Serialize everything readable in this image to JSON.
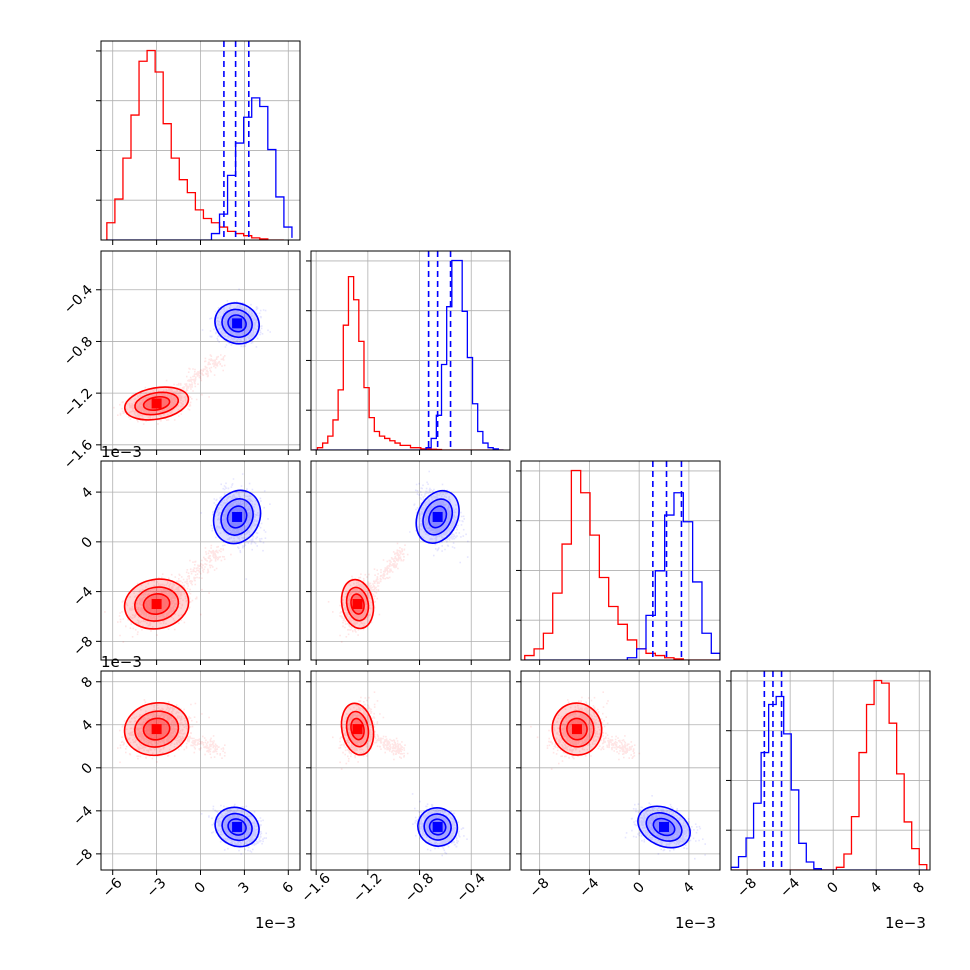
{
  "chart_data": {
    "type": "corner",
    "grid": true,
    "series": [
      {
        "color": "#ff0000",
        "fill": "rgba(255,0,0,0.35)",
        "scatter": "rgba(255,0,0,0.10)",
        "label_desc": "red samples"
      },
      {
        "color": "#0000ff",
        "fill": "rgba(40,40,255,0.35)",
        "scatter": "rgba(0,0,255,0.10)",
        "label_desc": "blue samples"
      }
    ],
    "parameters": [
      {
        "id": "p0",
        "range": [
          -6.8,
          6.8
        ],
        "ticks": [
          -6,
          -3,
          0,
          3,
          6
        ],
        "tick_labels": [
          "−6",
          "−3",
          "0",
          "3",
          "6"
        ],
        "multiplier": "1e−3"
      },
      {
        "id": "p1",
        "range": [
          -1.64,
          -0.1
        ],
        "ticks": [
          -1.6,
          -1.2,
          -0.8,
          -0.4
        ],
        "tick_labels": [
          "−1.6",
          "−1.2",
          "−0.8",
          "−0.4"
        ],
        "multiplier": "1e−3"
      },
      {
        "id": "p2",
        "range": [
          -9.5,
          6.5
        ],
        "ticks": [
          -8,
          -4,
          0,
          4
        ],
        "tick_labels": [
          "−8",
          "−4",
          "0",
          "4"
        ],
        "multiplier": "1e−3"
      },
      {
        "id": "p3",
        "range": [
          -9.5,
          9.0
        ],
        "ticks": [
          -8,
          -4,
          0,
          4,
          8
        ],
        "tick_labels": [
          "−8",
          "−4",
          "0",
          "4",
          "8"
        ],
        "multiplier": "1e−3"
      }
    ],
    "clusters": {
      "red": [
        {
          "mean": [
            -3.0,
            -1.28,
            -5.0,
            3.6
          ],
          "sd": [
            1.0,
            0.055,
            0.9,
            1.1
          ]
        }
      ],
      "red_tail_end": [
        0.5,
        -1.0,
        -1.5,
        2.0
      ],
      "blue": [
        {
          "mean": [
            2.5,
            -0.66,
            2.0,
            -5.5
          ],
          "sd": [
            0.7,
            0.07,
            1.0,
            0.8
          ]
        }
      ]
    },
    "hist1d": [
      {
        "bins": [
          -6.4,
          -5.85,
          -5.3,
          -4.75,
          -4.2,
          -3.65,
          -3.1,
          -2.55,
          -2.0,
          -1.45,
          -0.9,
          -0.35,
          0.2,
          0.75,
          1.3,
          1.85,
          2.4,
          2.95,
          3.5,
          4.05,
          4.6,
          5.15,
          5.7,
          6.25
        ],
        "red": [
          8,
          19,
          38,
          58,
          83,
          88,
          78,
          54,
          38,
          28,
          22,
          14,
          10,
          8,
          6,
          4,
          3,
          2,
          1,
          0.5,
          0,
          0
        ],
        "blue": [
          0,
          0,
          0,
          0,
          0,
          0,
          0,
          0,
          0,
          0,
          0,
          0,
          0,
          3,
          12,
          30,
          45,
          57,
          66,
          62,
          42,
          20,
          6,
          1
        ],
        "blue_quantiles": [
          1.6,
          2.4,
          3.3
        ]
      },
      {
        "bins": [
          -1.63,
          -1.59,
          -1.55,
          -1.51,
          -1.47,
          -1.43,
          -1.39,
          -1.35,
          -1.31,
          -1.27,
          -1.23,
          -1.19,
          -1.15,
          -1.11,
          -1.07,
          -1.03,
          -0.99,
          -0.95,
          -0.91,
          -0.87,
          -0.83,
          -0.79,
          -0.75,
          -0.71,
          -0.67,
          -0.63,
          -0.59,
          -0.55,
          -0.51,
          -0.47,
          -0.43,
          -0.39,
          -0.35,
          -0.31,
          -0.27,
          -0.23,
          -0.19,
          -0.15
        ],
        "red": [
          0,
          1,
          3,
          6,
          13,
          26,
          54,
          75,
          65,
          47,
          27,
          14,
          8,
          6,
          5,
          4,
          3,
          2,
          2,
          1,
          1,
          0.5,
          0.5,
          0.3,
          0.2,
          0,
          0,
          0,
          0,
          0,
          0,
          0,
          0,
          0,
          0,
          0,
          0
        ],
        "blue": [
          0,
          0,
          0,
          0,
          0,
          0,
          0,
          0,
          0,
          0,
          0,
          0,
          0,
          0,
          0,
          0,
          0,
          0,
          0,
          0,
          0,
          0,
          1,
          5,
          15,
          37,
          62,
          82,
          82,
          60,
          40,
          20,
          8,
          3,
          1,
          0.5,
          0
        ],
        "blue_quantiles": [
          -0.73,
          -0.66,
          -0.56
        ]
      },
      {
        "bins": [
          -9.2,
          -8.45,
          -7.7,
          -6.95,
          -6.2,
          -5.45,
          -4.7,
          -3.95,
          -3.2,
          -2.45,
          -1.7,
          -0.95,
          -0.2,
          0.55,
          1.3,
          2.05,
          2.8,
          3.55,
          4.3,
          5.05,
          5.8,
          6.5
        ],
        "red": [
          2,
          5,
          12,
          30,
          52,
          85,
          75,
          56,
          37,
          24,
          16,
          9,
          5,
          3,
          2,
          1,
          0.5,
          0,
          0,
          0,
          0
        ],
        "blue": [
          0,
          0,
          0,
          0,
          0,
          0,
          0,
          0,
          0,
          0,
          0,
          1,
          5,
          20,
          40,
          65,
          75,
          62,
          35,
          12,
          3
        ],
        "blue_quantiles": [
          1.1,
          2.2,
          3.4
        ]
      },
      {
        "bins": [
          -9.5,
          -8.8,
          -8.1,
          -7.4,
          -6.7,
          -6.0,
          -5.3,
          -4.6,
          -3.9,
          -3.2,
          -2.5,
          -1.8,
          -1.1,
          -0.4,
          0.3,
          1.0,
          1.7,
          2.4,
          3.1,
          3.8,
          4.5,
          5.2,
          5.9,
          6.6,
          7.3,
          8.0,
          8.7
        ],
        "red": [
          0,
          0,
          0,
          0,
          0,
          0,
          0,
          0,
          0,
          0,
          0,
          0,
          0,
          0,
          1,
          6,
          20,
          44,
          62,
          71,
          70,
          55,
          36,
          18,
          8,
          2
        ],
        "blue": [
          1,
          5,
          12,
          25,
          44,
          62,
          65,
          51,
          30,
          10,
          3,
          0.5,
          0,
          0,
          0,
          0,
          0,
          0,
          0,
          0,
          0,
          0,
          0,
          0,
          0,
          0
        ],
        "blue_quantiles": [
          -6.4,
          -5.6,
          -4.8
        ]
      }
    ]
  }
}
